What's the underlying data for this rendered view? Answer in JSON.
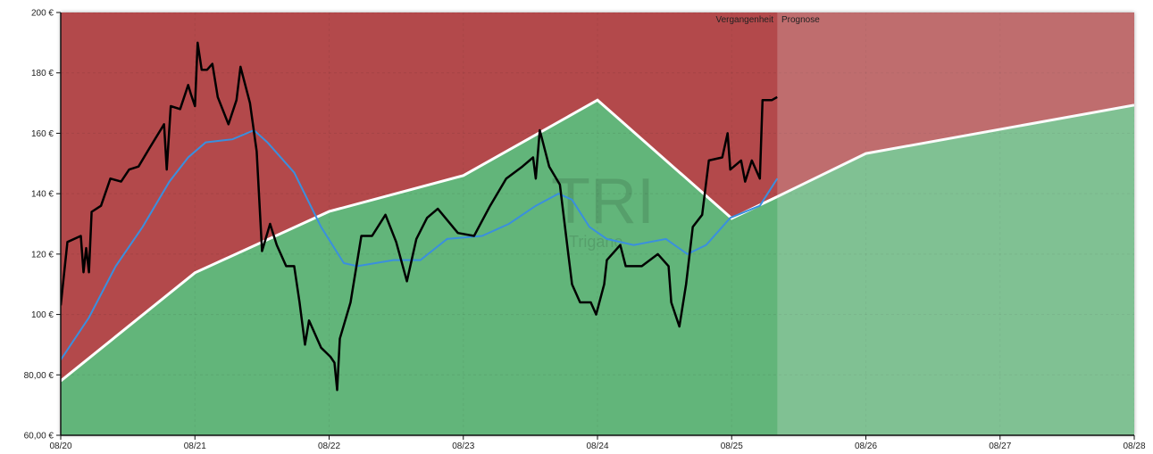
{
  "chart_data": {
    "type": "area",
    "title": "",
    "xlabel": "",
    "ylabel": "",
    "xlim": [
      2020,
      2028
    ],
    "ylim": [
      60,
      200
    ],
    "grid": true,
    "x_tick_labels": [
      "08/20",
      "08/21",
      "08/22",
      "08/23",
      "08/24",
      "08/25",
      "08/26",
      "08/27",
      "08/28"
    ],
    "y_ticks": [
      60,
      80,
      100,
      120,
      140,
      160,
      180,
      200
    ],
    "y_tick_labels": [
      "60,00 €",
      "80,00 €",
      "100 €",
      "120 €",
      "140 €",
      "160 €",
      "180 €",
      "200 €"
    ],
    "split_x": 2025.34,
    "region_labels": {
      "past": "Vergangenheit",
      "forecast": "Prognose"
    },
    "watermark": {
      "ticker": "TRI",
      "name": "Trigano"
    },
    "colors": {
      "above_fair_value": "#b34a4c",
      "below_fair_value": "#62b57a",
      "price": "#000000",
      "moving_average": "#3a8fde",
      "fair_value": "#ffffff"
    },
    "fair_value": [
      [
        2020.0,
        78
      ],
      [
        2021.0,
        113.8
      ],
      [
        2022.0,
        134.1
      ],
      [
        2023.0,
        146
      ],
      [
        2024.0,
        171
      ],
      [
        2025.0,
        131.8
      ],
      [
        2025.34,
        139
      ],
      [
        2026.0,
        153.3
      ],
      [
        2028.0,
        169.3
      ]
    ],
    "moving_average": [
      [
        2020.0,
        85
      ],
      [
        2020.21,
        99
      ],
      [
        2020.41,
        116
      ],
      [
        2020.61,
        129
      ],
      [
        2020.81,
        144
      ],
      [
        2020.95,
        152
      ],
      [
        2021.08,
        157
      ],
      [
        2021.28,
        158
      ],
      [
        2021.44,
        161
      ],
      [
        2021.54,
        157
      ],
      [
        2021.74,
        147
      ],
      [
        2021.94,
        129
      ],
      [
        2022.11,
        117
      ],
      [
        2022.21,
        116
      ],
      [
        2022.48,
        118
      ],
      [
        2022.68,
        118
      ],
      [
        2022.88,
        125
      ],
      [
        2023.14,
        126
      ],
      [
        2023.34,
        130
      ],
      [
        2023.54,
        136
      ],
      [
        2023.71,
        140
      ],
      [
        2023.81,
        138
      ],
      [
        2023.94,
        129
      ],
      [
        2024.07,
        125
      ],
      [
        2024.27,
        123
      ],
      [
        2024.51,
        125
      ],
      [
        2024.67,
        120
      ],
      [
        2024.81,
        123
      ],
      [
        2024.99,
        132
      ],
      [
        2025.21,
        136
      ],
      [
        2025.34,
        145
      ]
    ],
    "price": [
      [
        2020.0,
        103
      ],
      [
        2020.05,
        124
      ],
      [
        2020.15,
        126
      ],
      [
        2020.17,
        114
      ],
      [
        2020.19,
        122
      ],
      [
        2020.21,
        114
      ],
      [
        2020.23,
        134
      ],
      [
        2020.3,
        136
      ],
      [
        2020.37,
        145
      ],
      [
        2020.45,
        144
      ],
      [
        2020.51,
        148
      ],
      [
        2020.58,
        149
      ],
      [
        2020.66,
        155
      ],
      [
        2020.77,
        163
      ],
      [
        2020.79,
        148
      ],
      [
        2020.82,
        169
      ],
      [
        2020.89,
        168
      ],
      [
        2020.95,
        176
      ],
      [
        2020.97,
        173
      ],
      [
        2021.0,
        169
      ],
      [
        2021.02,
        190
      ],
      [
        2021.05,
        181
      ],
      [
        2021.09,
        181
      ],
      [
        2021.13,
        183
      ],
      [
        2021.17,
        172
      ],
      [
        2021.25,
        163
      ],
      [
        2021.31,
        171
      ],
      [
        2021.34,
        182
      ],
      [
        2021.41,
        170
      ],
      [
        2021.46,
        154
      ],
      [
        2021.5,
        121
      ],
      [
        2021.56,
        130
      ],
      [
        2021.61,
        123
      ],
      [
        2021.68,
        116
      ],
      [
        2021.74,
        116
      ],
      [
        2021.78,
        104
      ],
      [
        2021.82,
        90
      ],
      [
        2021.85,
        98
      ],
      [
        2021.94,
        89
      ],
      [
        2022.01,
        86
      ],
      [
        2022.04,
        84
      ],
      [
        2022.06,
        75
      ],
      [
        2022.08,
        92
      ],
      [
        2022.16,
        104
      ],
      [
        2022.24,
        126
      ],
      [
        2022.32,
        126
      ],
      [
        2022.42,
        133
      ],
      [
        2022.5,
        124
      ],
      [
        2022.58,
        111
      ],
      [
        2022.65,
        125
      ],
      [
        2022.73,
        132
      ],
      [
        2022.81,
        135
      ],
      [
        2022.96,
        127
      ],
      [
        2023.08,
        126
      ],
      [
        2023.2,
        136
      ],
      [
        2023.32,
        145
      ],
      [
        2023.44,
        149
      ],
      [
        2023.52,
        152
      ],
      [
        2023.54,
        145
      ],
      [
        2023.57,
        161
      ],
      [
        2023.64,
        149
      ],
      [
        2023.72,
        143
      ],
      [
        2023.78,
        121
      ],
      [
        2023.81,
        110
      ],
      [
        2023.87,
        104
      ],
      [
        2023.95,
        104
      ],
      [
        2023.99,
        100
      ],
      [
        2024.05,
        110
      ],
      [
        2024.07,
        118
      ],
      [
        2024.17,
        123
      ],
      [
        2024.21,
        116
      ],
      [
        2024.33,
        116
      ],
      [
        2024.45,
        120
      ],
      [
        2024.53,
        116
      ],
      [
        2024.55,
        104
      ],
      [
        2024.61,
        96
      ],
      [
        2024.66,
        110
      ],
      [
        2024.71,
        129
      ],
      [
        2024.78,
        133
      ],
      [
        2024.83,
        151
      ],
      [
        2024.93,
        152
      ],
      [
        2024.97,
        160
      ],
      [
        2024.99,
        148
      ],
      [
        2025.07,
        151
      ],
      [
        2025.1,
        144
      ],
      [
        2025.15,
        151
      ],
      [
        2025.21,
        145
      ],
      [
        2025.23,
        171
      ],
      [
        2025.3,
        171
      ],
      [
        2025.34,
        172
      ]
    ]
  }
}
